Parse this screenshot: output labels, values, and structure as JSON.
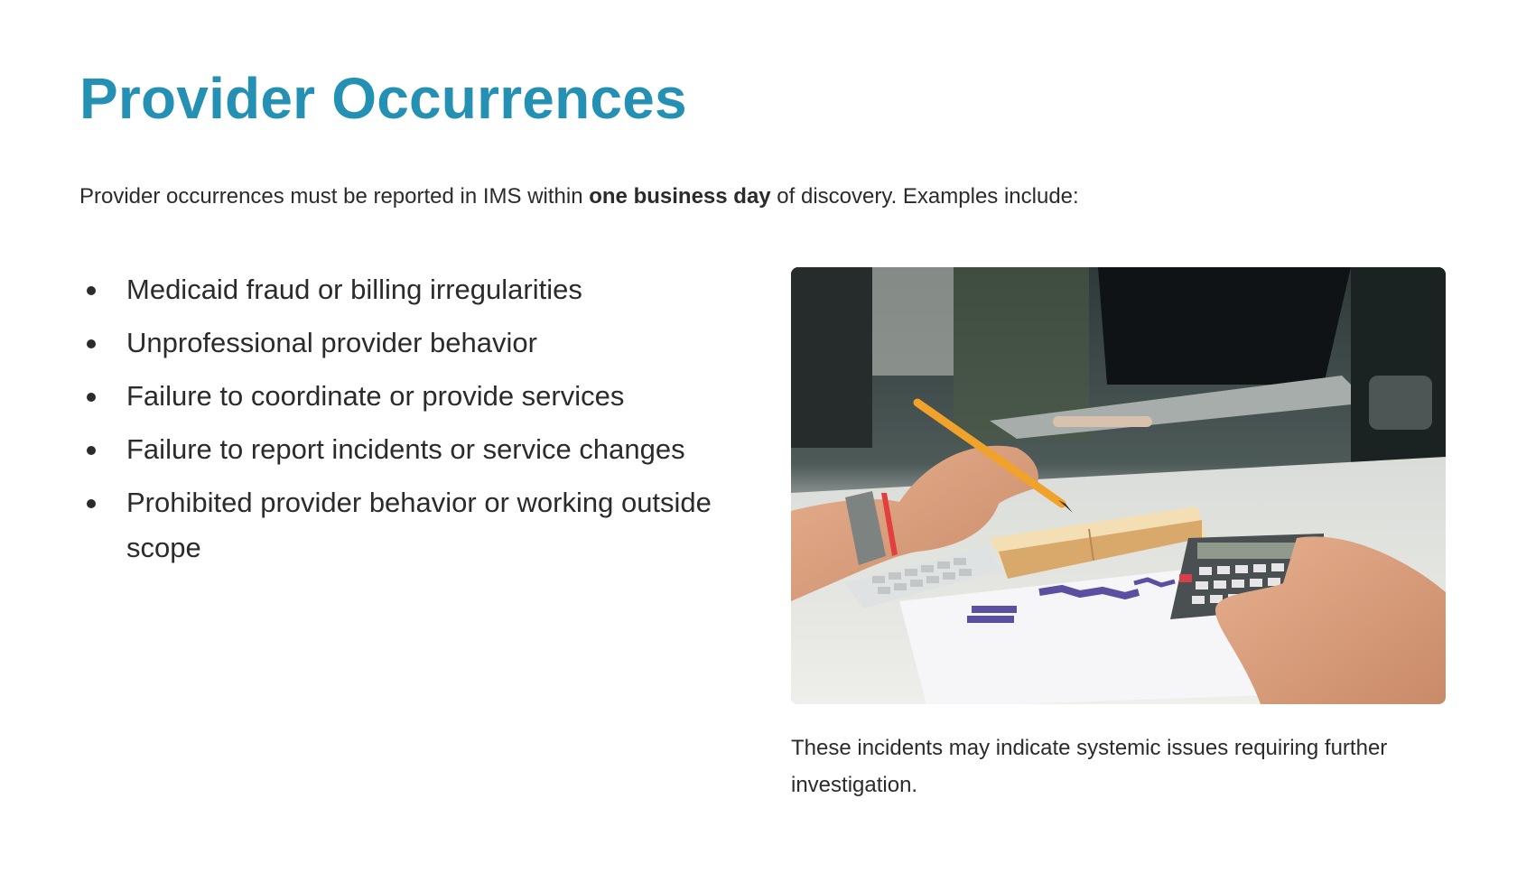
{
  "slide": {
    "title": "Provider Occurrences",
    "intro": {
      "before": "Provider occurrences must be reported in IMS within ",
      "emphasis": "one business day",
      "after": " of discovery. Examples include:"
    },
    "bullets": [
      "Medicaid fraud or billing irregularities",
      "Unprofessional provider behavior",
      "Failure to coordinate or provide services",
      "Failure to report incidents or service changes",
      "Prohibited provider behavior or working outside scope"
    ],
    "photo_icon": "desk-calculator-notebook-photo",
    "caption": "These incidents may indicate systemic issues requiring further investigation."
  },
  "colors": {
    "title": "#2490b4",
    "text": "#2b2b2b",
    "background": "#ffffff"
  }
}
